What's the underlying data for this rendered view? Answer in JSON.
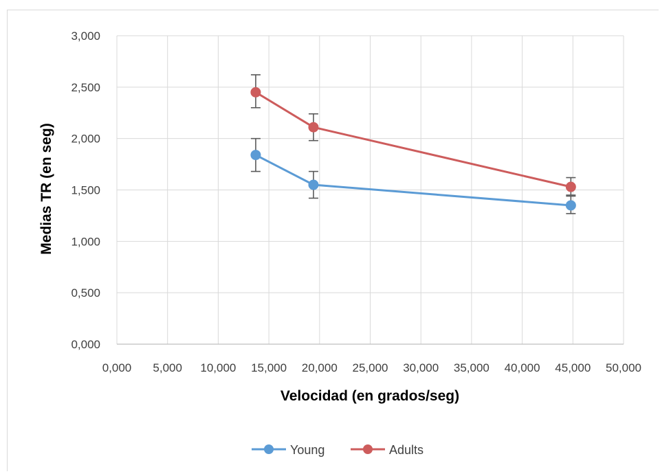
{
  "chart_data": {
    "type": "scatter",
    "title": "",
    "xlabel": "Velocidad (en grados/seg)",
    "ylabel": "Medias TR (en seg)",
    "xlim": [
      0,
      50
    ],
    "ylim": [
      0,
      3
    ],
    "x_ticks": [
      "0,000",
      "5,000",
      "10,000",
      "15,000",
      "20,000",
      "25,000",
      "30,000",
      "35,000",
      "40,000",
      "45,000",
      "50,000"
    ],
    "x_tick_values": [
      0,
      5,
      10,
      15,
      20,
      25,
      30,
      35,
      40,
      45,
      50
    ],
    "y_ticks": [
      "0,000",
      "0,500",
      "1,000",
      "1,500",
      "2,000",
      "2,500",
      "3,000"
    ],
    "y_tick_values": [
      0,
      0.5,
      1,
      1.5,
      2,
      2.5,
      3
    ],
    "grid": true,
    "legend_position": "bottom",
    "series": [
      {
        "name": "Young",
        "color": "#5b9bd5",
        "x": [
          13.7,
          19.4,
          44.8
        ],
        "y": [
          1.84,
          1.55,
          1.35
        ],
        "err_low": [
          1.68,
          1.42,
          1.27
        ],
        "err_high": [
          2.0,
          1.68,
          1.44
        ]
      },
      {
        "name": "Adults",
        "color": "#cd5c5c",
        "x": [
          13.7,
          19.4,
          44.8
        ],
        "y": [
          2.45,
          2.11,
          1.53
        ],
        "err_low": [
          2.3,
          1.98,
          1.45
        ],
        "err_high": [
          2.62,
          2.24,
          1.62
        ]
      }
    ]
  }
}
